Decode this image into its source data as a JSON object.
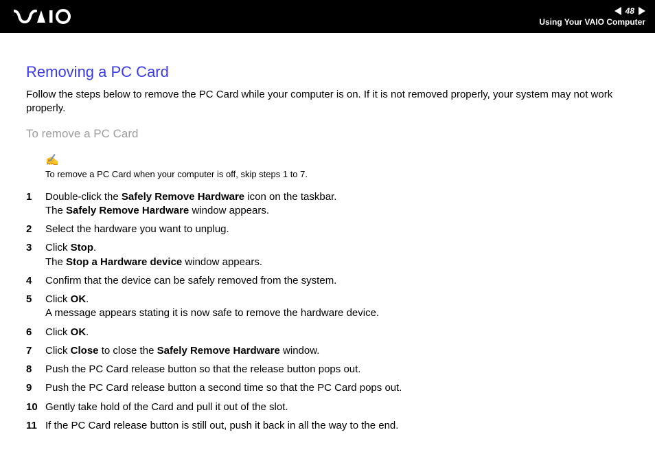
{
  "header": {
    "logo_text": "VAIO",
    "page_number": "48",
    "section_label": "Using Your VAIO Computer"
  },
  "content": {
    "title": "Removing a PC Card",
    "intro": "Follow the steps below to remove the PC Card while your computer is on. If it is not removed properly, your system may not work properly.",
    "subheading": "To remove a PC Card",
    "note_icon": "✍",
    "note": "To remove a PC Card when your computer is off, skip steps 1 to 7.",
    "steps": [
      "Double-click the <strong>Safely Remove Hardware</strong> icon on the taskbar.<br>The <strong>Safely Remove Hardware</strong> window appears.",
      "Select the hardware you want to unplug.",
      "Click <strong>Stop</strong>.<br>The <strong>Stop a Hardware device</strong> window appears.",
      "Confirm that the device can be safely removed from the system.",
      "Click <strong>OK</strong>.<br>A message appears stating it is now safe to remove the hardware device.",
      "Click <strong>OK</strong>.",
      "Click <strong>Close</strong> to close the <strong>Safely Remove Hardware</strong> window.",
      "Push the PC Card release button so that the release button pops out.",
      "Push the PC Card release button a second time so that the PC Card pops out.",
      "Gently take hold of the Card and pull it out of the slot.",
      "If the PC Card release button is still out, push it back in all the way to the end."
    ]
  },
  "colors": {
    "header_bg": "#000000",
    "title_color": "#3a3ae6",
    "subheading_color": "#9d9d9d",
    "body_text": "#000000",
    "background": "#ffffff"
  },
  "typography": {
    "title_fontsize": 22,
    "body_fontsize": 15,
    "subheading_fontsize": 17,
    "note_fontsize": 13,
    "header_label_fontsize": 12
  }
}
